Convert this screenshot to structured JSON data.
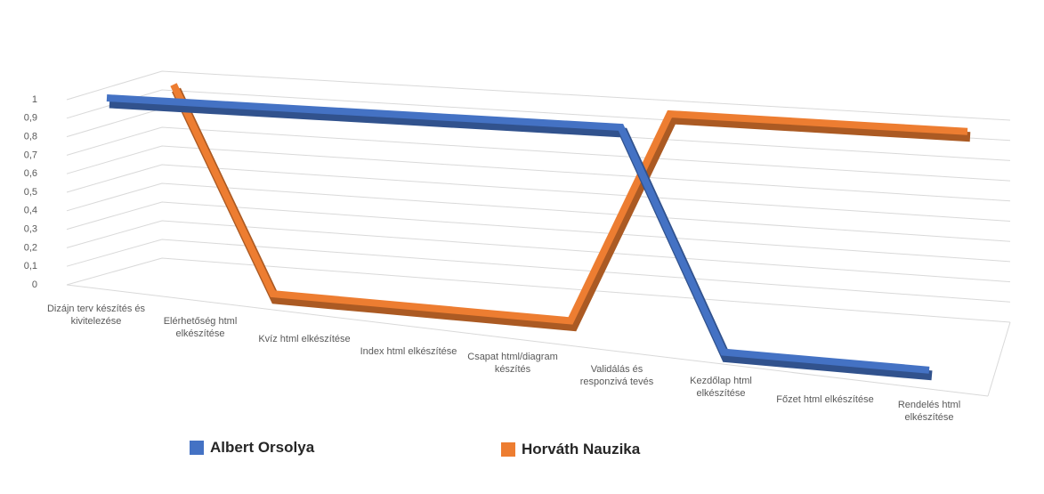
{
  "chart_data": {
    "type": "line3d",
    "categories": [
      "Dizájn terv készítés és kivitelezése",
      "Elérhetőség html elkészítése",
      "Kvíz html elkészítése",
      "Index html elkészítése",
      "Csapat html/diagram készítés",
      "Validálás és responzivá tevés",
      "Kezdőlap html elkészítése",
      "Főzet html elkészítése",
      "Rendelés html elkészítése"
    ],
    "series": [
      {
        "name": "Albert Orsolya",
        "color": "#4472c4",
        "values": [
          1,
          1,
          1,
          1,
          1,
          1,
          0,
          0,
          0
        ]
      },
      {
        "name": "Horváth Nauzika",
        "color": "#ed7d31",
        "values": [
          1,
          0,
          0,
          0,
          0,
          1,
          1,
          1,
          1
        ]
      }
    ],
    "ylim": [
      0,
      1
    ],
    "yticks": [
      0,
      {
        "value": 0.1,
        "label": "0,1"
      },
      {
        "value": 0.2,
        "label": "0,2"
      },
      {
        "value": 0.3,
        "label": "0,3"
      },
      {
        "value": 0.4,
        "label": "0,4"
      },
      {
        "value": 0.5,
        "label": "0,5"
      },
      {
        "value": 0.6,
        "label": "0,6"
      },
      {
        "value": 0.7,
        "label": "0,7"
      },
      {
        "value": 0.8,
        "label": "0,8"
      },
      {
        "value": 0.9,
        "label": "0,9"
      },
      1
    ],
    "grid": true
  }
}
